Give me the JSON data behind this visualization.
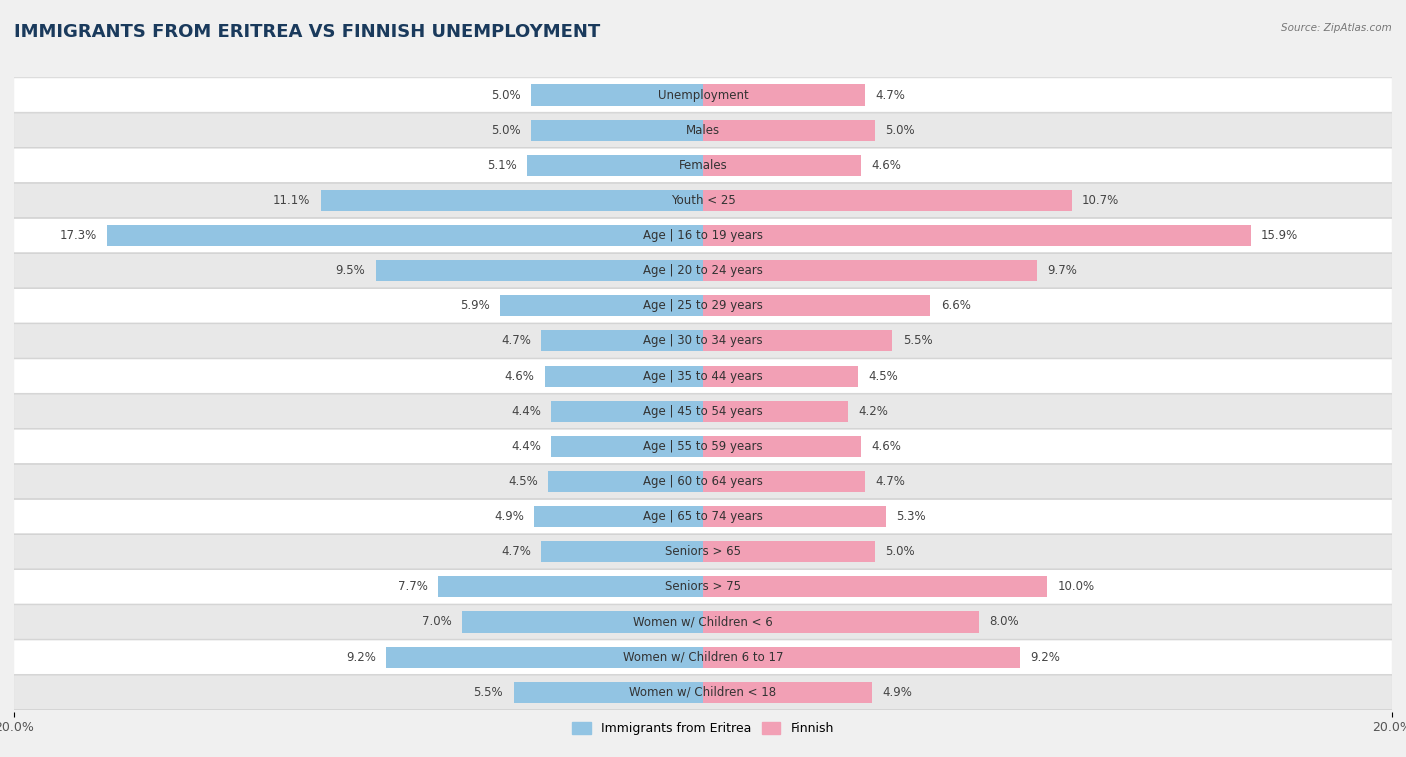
{
  "title": "IMMIGRANTS FROM ERITREA VS FINNISH UNEMPLOYMENT",
  "source": "Source: ZipAtlas.com",
  "categories": [
    "Unemployment",
    "Males",
    "Females",
    "Youth < 25",
    "Age | 16 to 19 years",
    "Age | 20 to 24 years",
    "Age | 25 to 29 years",
    "Age | 30 to 34 years",
    "Age | 35 to 44 years",
    "Age | 45 to 54 years",
    "Age | 55 to 59 years",
    "Age | 60 to 64 years",
    "Age | 65 to 74 years",
    "Seniors > 65",
    "Seniors > 75",
    "Women w/ Children < 6",
    "Women w/ Children 6 to 17",
    "Women w/ Children < 18"
  ],
  "eritrea_values": [
    5.0,
    5.0,
    5.1,
    11.1,
    17.3,
    9.5,
    5.9,
    4.7,
    4.6,
    4.4,
    4.4,
    4.5,
    4.9,
    4.7,
    7.7,
    7.0,
    9.2,
    5.5
  ],
  "finnish_values": [
    4.7,
    5.0,
    4.6,
    10.7,
    15.9,
    9.7,
    6.6,
    5.5,
    4.5,
    4.2,
    4.6,
    4.7,
    5.3,
    5.0,
    10.0,
    8.0,
    9.2,
    4.9
  ],
  "eritrea_color": "#92C4E3",
  "finnish_color": "#F2A0B5",
  "background_color": "#f0f0f0",
  "row_color_light": "#ffffff",
  "row_color_dark": "#e8e8e8",
  "row_border_color": "#cccccc",
  "max_val": 20.0,
  "title_fontsize": 13,
  "label_fontsize": 8.5,
  "tick_fontsize": 9,
  "legend_fontsize": 9
}
